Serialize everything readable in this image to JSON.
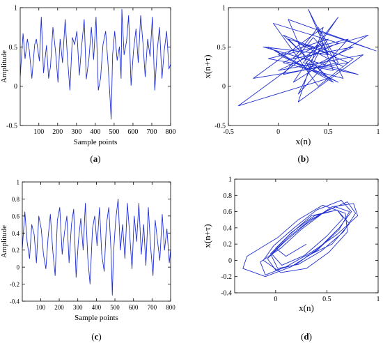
{
  "chart_data": [
    {
      "id": "a",
      "type": "line",
      "caption_prefix": "(",
      "caption_letter": "a",
      "caption_suffix": ")",
      "xlabel": "Sample points",
      "ylabel": "Amplitude",
      "xlim": [
        1,
        800
      ],
      "ylim": [
        -0.5,
        1
      ],
      "xticks": [
        100,
        200,
        300,
        400,
        500,
        600,
        700,
        800
      ],
      "xtick_labels": [
        "100",
        "200",
        "300",
        "400",
        "500",
        "600",
        "700",
        "800"
      ],
      "yticks": [
        -0.5,
        0,
        0.5,
        1
      ],
      "ytick_labels": [
        "-0.5",
        "0",
        "0.5",
        "1"
      ],
      "color": "#1f2fd0",
      "series": [
        {
          "x": [
            1,
            16,
            27,
            39,
            49,
            63,
            78,
            87,
            103,
            113,
            125,
            141,
            152,
            162,
            175,
            188,
            202,
            213,
            226,
            240,
            252,
            265,
            278,
            290,
            302,
            315,
            327,
            341,
            352,
            366,
            379,
            391,
            404,
            416,
            428,
            441,
            455,
            467,
            478,
            484,
            492,
            503,
            516,
            528,
            537,
            541,
            553,
            566,
            577,
            590,
            603,
            616,
            628,
            641,
            653,
            665,
            678,
            691,
            703,
            716,
            728,
            741,
            754,
            766,
            779,
            791,
            800
          ],
          "y": [
            0.12,
            0.67,
            0.35,
            0.6,
            0.46,
            0.1,
            0.53,
            0.6,
            0.32,
            0.88,
            0.17,
            0.52,
            0.1,
            0.25,
            0.75,
            0.46,
            0.05,
            0.6,
            0.3,
            0.85,
            0.36,
            -0.05,
            0.62,
            0.53,
            0.7,
            0.14,
            0.5,
            0.85,
            0.09,
            0.35,
            0.75,
            0.34,
            0.88,
            -0.05,
            0.1,
            0.53,
            0.7,
            0.3,
            -0.15,
            -0.42,
            0.4,
            0.7,
            0.33,
            0.5,
            0.1,
            0.98,
            0.4,
            0.57,
            0.9,
            0.01,
            0.45,
            0.73,
            0.3,
            0.9,
            0.55,
            0.12,
            0.6,
            0.38,
            0.88,
            -0.05,
            0.43,
            0.75,
            0.1,
            0.45,
            0.7,
            0.22,
            0.28
          ]
        }
      ]
    },
    {
      "id": "b",
      "type": "line",
      "caption_prefix": "(",
      "caption_letter": "b",
      "caption_suffix": ")",
      "xlabel": "x(n)",
      "ylabel": "x(n+τ)",
      "xlim": [
        -0.5,
        1
      ],
      "ylim": [
        -0.5,
        1
      ],
      "xticks": [
        -0.5,
        0,
        0.5,
        1
      ],
      "xtick_labels": [
        "-0.5",
        "0",
        "0.5",
        "1"
      ],
      "yticks": [
        -0.5,
        0,
        0.5,
        1
      ],
      "ytick_labels": [
        "-0.5",
        "0",
        "0.5",
        "1"
      ],
      "color": "#1f2fd0",
      "series": [
        {
          "x": [
            0.3,
            -0.1,
            0.55,
            0.05,
            0.7,
            -0.25,
            0.45,
            0.2,
            0.85,
            0.0,
            0.6,
            -0.05,
            0.4,
            0.75,
            0.1,
            0.5,
            -0.4,
            0.35,
            0.9,
            0.15,
            0.6,
            0.25,
            0.8,
            -0.15,
            0.5,
            0.3,
            0.65,
            0.05,
            0.45,
            0.2,
            0.7,
            -0.1,
            0.55,
            0.4,
            0.98,
            0.1,
            0.3,
            0.6,
            0.0,
            0.5,
            0.25,
            0.75,
            0.15,
            0.4,
            0.6,
            0.05,
            0.35,
            0.5,
            0.2,
            0.65
          ],
          "y": [
            0.2,
            0.5,
            0.05,
            0.65,
            0.3,
            0.1,
            0.75,
            -0.2,
            0.4,
            0.2,
            0.55,
            0.8,
            0.0,
            0.35,
            0.6,
            0.1,
            -0.25,
            0.45,
            0.65,
            0.05,
            0.88,
            0.3,
            0.15,
            0.5,
            0.4,
            0.98,
            0.1,
            0.3,
            0.55,
            -0.1,
            0.6,
            0.35,
            0.2,
            0.7,
            0.45,
            0.85,
            0.25,
            0.05,
            0.4,
            0.6,
            0.2,
            0.5,
            0.35,
            0.75,
            0.3,
            0.15,
            0.62,
            0.42,
            0.55,
            0.25
          ]
        }
      ]
    },
    {
      "id": "c",
      "type": "line",
      "caption_prefix": "(",
      "caption_letter": "c",
      "caption_suffix": ")",
      "xlabel": "Sample points",
      "ylabel": "Amplitude",
      "xlim": [
        1,
        800
      ],
      "ylim": [
        -0.4,
        1
      ],
      "xticks": [
        100,
        200,
        300,
        400,
        500,
        600,
        700,
        800
      ],
      "xtick_labels": [
        "100",
        "200",
        "300",
        "400",
        "500",
        "600",
        "700",
        "800"
      ],
      "yticks": [
        -0.4,
        -0.2,
        0,
        0.2,
        0.4,
        0.6,
        0.8,
        1
      ],
      "ytick_labels": [
        "-0.4",
        "-0.2",
        "0",
        "0.2",
        "0.4",
        "0.6",
        "0.8",
        "1"
      ],
      "color": "#1f2fd0",
      "series": [
        {
          "x": [
            1,
            15,
            27,
            40,
            52,
            65,
            77,
            90,
            103,
            115,
            128,
            140,
            152,
            165,
            178,
            190,
            203,
            216,
            228,
            241,
            253,
            266,
            278,
            291,
            303,
            316,
            329,
            341,
            354,
            366,
            379,
            391,
            404,
            417,
            429,
            442,
            454,
            467,
            479,
            486,
            492,
            504,
            517,
            529,
            541,
            554,
            567,
            579,
            592,
            604,
            617,
            629,
            642,
            655,
            667,
            680,
            692,
            705,
            717,
            730,
            742,
            755,
            767,
            780,
            793,
            800
          ],
          "y": [
            0.22,
            0.65,
            0.3,
            0.1,
            0.5,
            0.38,
            0.05,
            0.6,
            0.45,
            0.15,
            -0.02,
            0.35,
            0.62,
            0.2,
            -0.1,
            0.55,
            0.7,
            0.15,
            0.4,
            0.6,
            0.05,
            0.5,
            0.68,
            -0.12,
            0.3,
            0.57,
            0.2,
            0.75,
            0.1,
            -0.2,
            0.45,
            0.6,
            0.25,
            0.7,
            0.15,
            -0.05,
            0.5,
            0.7,
            0.2,
            -0.33,
            0.15,
            0.55,
            0.8,
            0.2,
            0.5,
            0.1,
            0.75,
            0.4,
            -0.02,
            0.6,
            0.3,
            0.75,
            0.15,
            0.5,
            0.02,
            0.7,
            0.25,
            -0.1,
            0.55,
            0.3,
            0.08,
            0.62,
            0.2,
            0.45,
            0.05,
            0.2
          ]
        }
      ]
    },
    {
      "id": "d",
      "type": "line",
      "caption_prefix": "(",
      "caption_letter": "d",
      "caption_suffix": ")",
      "xlabel": "x(n)",
      "ylabel": "x(n+τ)",
      "xlim": [
        -0.4,
        1
      ],
      "ylim": [
        -0.4,
        1
      ],
      "xticks": [
        0,
        0.5,
        1
      ],
      "xtick_labels": [
        "0",
        "0.5",
        "1"
      ],
      "yticks": [
        -0.4,
        -0.2,
        0,
        0.2,
        0.4,
        0.6,
        0.8,
        1
      ],
      "ytick_labels": [
        "-0.4",
        "-0.2",
        "0",
        "0.2",
        "0.4",
        "0.6",
        "0.8",
        "1"
      ],
      "color": "#1f2fd0",
      "series": [
        {
          "x": [
            0.3,
            0.55,
            0.72,
            0.6,
            0.35,
            0.12,
            -0.05,
            0.02,
            0.22,
            0.45,
            0.66,
            0.78,
            0.7,
            0.48,
            0.25,
            0.05,
            -0.15,
            -0.1,
            0.1,
            0.35,
            0.6,
            0.8,
            0.76,
            0.55,
            0.3,
            0.08,
            -0.08,
            0.0,
            0.2,
            0.42,
            0.62,
            0.74,
            0.64,
            0.4,
            0.18,
            -0.02,
            -0.12,
            0.05,
            0.3,
            0.52,
            0.7,
            0.68,
            0.46,
            0.22,
            0.02,
            -0.28,
            -0.32,
            -0.1,
            0.15,
            0.4,
            0.62,
            0.72,
            0.58,
            0.34,
            0.12,
            -0.04,
            0.06,
            0.28,
            0.5,
            0.66,
            0.6,
            0.38,
            0.16,
            0.0,
            0.1,
            0.3
          ],
          "y": [
            0.05,
            0.2,
            0.45,
            0.62,
            0.55,
            0.3,
            0.08,
            -0.1,
            -0.05,
            0.12,
            0.35,
            0.58,
            0.72,
            0.6,
            0.38,
            0.15,
            -0.02,
            -0.18,
            -0.08,
            0.1,
            0.32,
            0.55,
            0.7,
            0.66,
            0.45,
            0.22,
            0.02,
            -0.12,
            -0.05,
            0.15,
            0.4,
            0.6,
            0.74,
            0.62,
            0.4,
            0.18,
            0.0,
            -0.15,
            -0.1,
            0.1,
            0.35,
            0.58,
            0.68,
            0.5,
            0.28,
            0.05,
            -0.1,
            -0.2,
            -0.08,
            0.12,
            0.38,
            0.6,
            0.66,
            0.5,
            0.28,
            0.08,
            -0.06,
            0.06,
            0.3,
            0.52,
            0.62,
            0.55,
            0.35,
            0.15,
            0.05,
            0.2
          ]
        }
      ]
    }
  ]
}
